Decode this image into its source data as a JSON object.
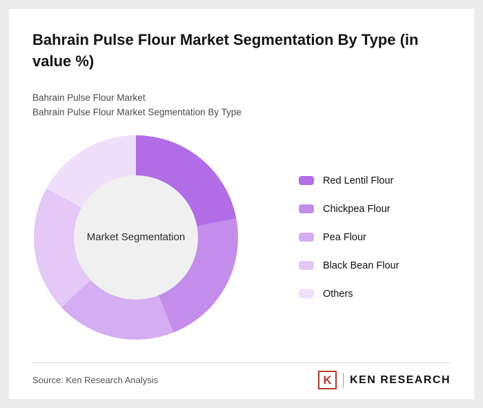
{
  "header": {
    "title": "Bahrain Pulse Flour Market Segmentation By Type (in value %)",
    "subtitle1": "Bahrain Pulse Flour Market",
    "subtitle2": "Bahrain Pulse Flour Market Segmentation By Type"
  },
  "chart_data": {
    "type": "pie",
    "variant": "donut",
    "title": "Bahrain Pulse Flour Market Segmentation By Type (in value %)",
    "center_label": "Market Segmentation",
    "categories": [
      "Red Lentil Flour",
      "Chickpea Flour",
      "Pea Flour",
      "Black Bean Flour",
      "Others"
    ],
    "values": [
      22,
      22,
      19,
      20,
      17
    ],
    "colors": [
      "#b16ce6",
      "#c48ceb",
      "#d5adf2",
      "#e4c8f7",
      "#efdffb"
    ],
    "start_angle_deg": 0,
    "direction": "clockwise",
    "legend_position": "right",
    "hole_color": "#f0f0f0"
  },
  "footer": {
    "source": "Source: Ken Research Analysis",
    "logo_letter": "K",
    "logo_text": "KEN RESEARCH",
    "logo_accent_color": "#b03a2e"
  }
}
